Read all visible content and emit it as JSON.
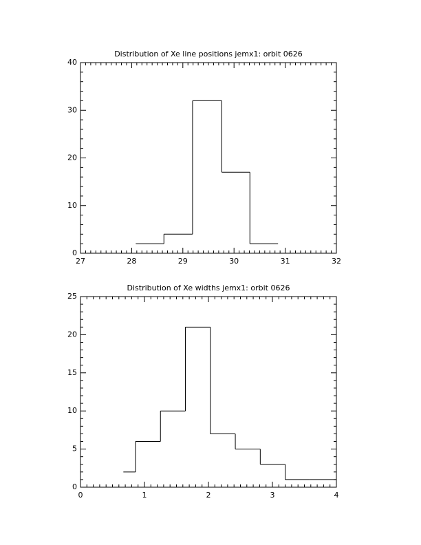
{
  "chart_data": [
    {
      "type": "histogram",
      "title": "Distribution of Xe line positions jemx1: orbit 0626",
      "bins": [
        28.08,
        28.63,
        29.19,
        29.76,
        30.31,
        30.86
      ],
      "counts": [
        2,
        4,
        32,
        17,
        2
      ],
      "xlim": [
        27,
        32
      ],
      "xticks": [
        27,
        28,
        29,
        30,
        31,
        32
      ],
      "xminor": 10,
      "ylim": [
        0,
        40
      ],
      "yticks": [
        0,
        10,
        20,
        30,
        40
      ],
      "yminor": 5,
      "color": "#000000"
    },
    {
      "type": "histogram",
      "title": "Distribution of Xe widths jemx1: orbit 0626",
      "bins": [
        0.67,
        0.86,
        1.25,
        1.64,
        2.03,
        2.42,
        2.81,
        3.2,
        3.59,
        4.0
      ],
      "counts": [
        2,
        6,
        10,
        21,
        7,
        5,
        3,
        1,
        1
      ],
      "xlim": [
        0,
        4
      ],
      "xticks": [
        0,
        1,
        2,
        3,
        4
      ],
      "xminor": 10,
      "ylim": [
        0,
        25
      ],
      "yticks": [
        0,
        5,
        10,
        15,
        20,
        25
      ],
      "yminor": 5,
      "color": "#000000"
    }
  ]
}
